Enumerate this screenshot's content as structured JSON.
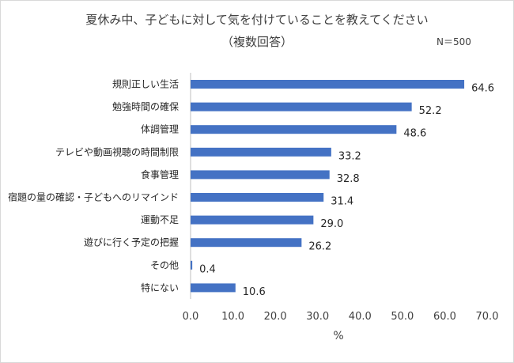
{
  "chart_data": {
    "type": "bar",
    "orientation": "horizontal",
    "title_line1": "夏休み中、子どもに対して気を付けていることを教えてください",
    "title_line2": "（複数回答）",
    "sample_size": "N＝500",
    "xlabel": "%",
    "ylabel": "",
    "xlim": [
      0,
      70
    ],
    "xticks": [
      "0.0",
      "10.0",
      "20.0",
      "30.0",
      "40.0",
      "50.0",
      "60.0",
      "70.0"
    ],
    "grid": false,
    "bar_color": "#4472c4",
    "categories": [
      "規則正しい生活",
      "勉強時間の確保",
      "体調管理",
      "テレビや動画視聴の時間制限",
      "食事管理",
      "宿題の量の確認・子どもへのリマインド",
      "運動不足",
      "遊びに行く予定の把握",
      "その他",
      "特にない"
    ],
    "values": [
      64.6,
      52.2,
      48.6,
      33.2,
      32.8,
      31.4,
      29.0,
      26.2,
      0.4,
      10.6
    ],
    "value_labels": [
      "64.6",
      "52.2",
      "48.6",
      "33.2",
      "32.8",
      "31.4",
      "29.0",
      "26.2",
      "0.4",
      "10.6"
    ]
  }
}
